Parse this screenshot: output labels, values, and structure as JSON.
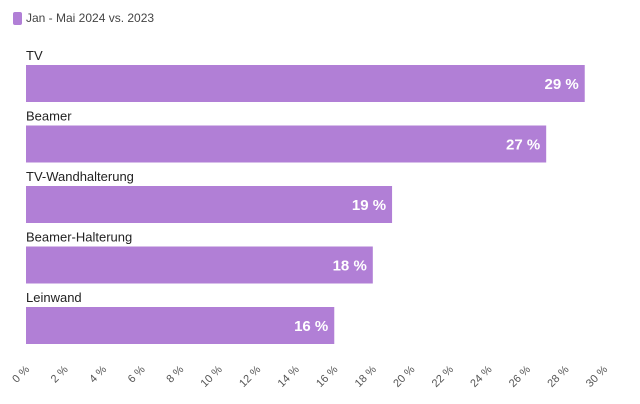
{
  "chart_data": {
    "type": "bar",
    "orientation": "horizontal",
    "categories": [
      "TV",
      "Beamer",
      "TV-Wandhalterung",
      "Beamer-Halterung",
      "Leinwand"
    ],
    "series": [
      {
        "name": "Jan - Mai 2024 vs. 2023",
        "values": [
          29,
          27,
          19,
          18,
          16
        ],
        "labels": [
          "29 %",
          "27 %",
          "19 %",
          "18 %",
          "16 %"
        ],
        "color": "#b17fd6"
      }
    ],
    "xlim": [
      0,
      30
    ],
    "x_ticks": [
      "0 %",
      "2 %",
      "4 %",
      "6 %",
      "8 %",
      "10 %",
      "12 %",
      "14 %",
      "16 %",
      "18 %",
      "20 %",
      "22 %",
      "24 %",
      "26 %",
      "28 %",
      "30 %"
    ],
    "legend_position": "top-left",
    "grid": false
  }
}
